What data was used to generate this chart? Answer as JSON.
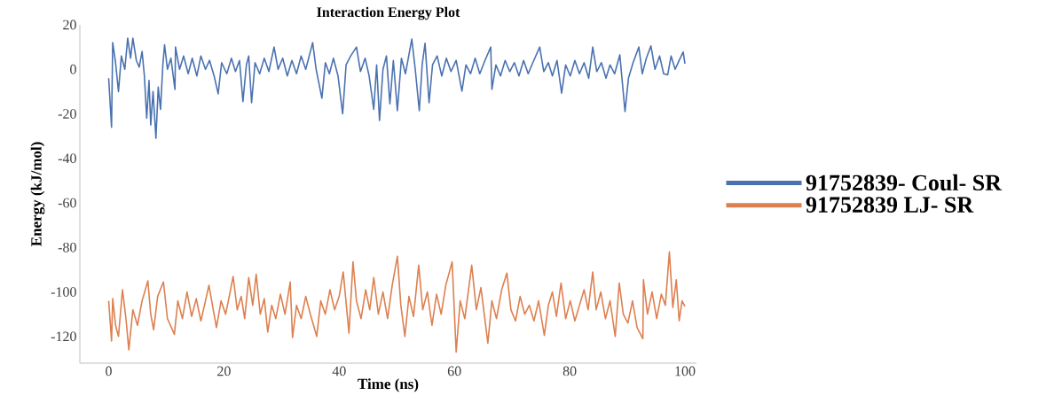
{
  "chart_data": {
    "type": "line",
    "title": "Interaction Energy Plot",
    "xlabel": "Time (ns)",
    "ylabel": "Energy (kJ/mol)",
    "xlim": [
      -5,
      102
    ],
    "ylim": [
      -132,
      20
    ],
    "xticks": [
      0,
      20,
      40,
      60,
      80,
      100
    ],
    "yticks": [
      -120,
      -100,
      -80,
      -60,
      -40,
      -20,
      0,
      20
    ],
    "grid": false,
    "legend": "right",
    "marker": "none",
    "line_style": "solid",
    "series": [
      {
        "name": "91752839- Coul- SR",
        "color": "#4a72b0",
        "x": [
          0,
          0.5,
          0.7,
          1.2,
          1.7,
          2.2,
          2.8,
          3.3,
          3.8,
          4.2,
          4.8,
          5.3,
          5.8,
          6.2,
          6.6,
          7,
          7.3,
          7.7,
          8.2,
          8.6,
          9,
          9.4,
          9.7,
          10.2,
          10.8,
          11.5,
          11.6,
          12.3,
          13,
          13.8,
          14.5,
          15.3,
          16,
          16.8,
          17.5,
          18.3,
          19,
          19.6,
          20.5,
          21.3,
          22,
          22.7,
          23.3,
          23.9,
          24.3,
          24.8,
          25.4,
          26.2,
          27,
          27.8,
          28.7,
          29.4,
          30.2,
          31,
          31.8,
          32.6,
          33.4,
          34.2,
          35.4,
          36,
          37,
          37.6,
          38.3,
          39,
          39.8,
          40.6,
          41.2,
          42,
          43,
          43.7,
          44.5,
          45.2,
          46,
          46.5,
          47,
          47.6,
          48.2,
          48.8,
          49.4,
          50.1,
          50.8,
          51.5,
          52.6,
          53.2,
          53.9,
          54.4,
          54.9,
          55.6,
          56.2,
          57,
          57.8,
          58.6,
          59.4,
          60.3,
          61.3,
          62,
          62.8,
          63.6,
          64.4,
          65.3,
          66.3,
          66.5,
          67.2,
          68,
          68.8,
          69.6,
          70.4,
          71.2,
          72,
          72.8,
          73.6,
          74.8,
          75.5,
          76.3,
          77,
          77.8,
          78.6,
          79.3,
          80.1,
          80.9,
          81.7,
          82.5,
          83.3,
          84,
          84.7,
          85.5,
          86.3,
          87,
          87.8,
          88.7,
          89.6,
          90.2,
          91,
          92,
          92.6,
          93.3,
          94.1,
          94.8,
          95.6,
          96.3,
          97,
          97.6,
          98.3,
          99,
          99.7,
          100
        ],
        "values": [
          -4,
          -26,
          12,
          3,
          -10,
          6,
          0,
          14,
          5,
          14,
          4,
          1,
          8,
          -3,
          -22,
          -5,
          -25,
          -10,
          -31,
          -8,
          -18,
          2,
          11,
          0,
          5,
          -9,
          10,
          0,
          6,
          -2,
          5,
          -3,
          6,
          0,
          4,
          -3,
          -11,
          3,
          -2,
          5,
          -1,
          4,
          -14.5,
          2,
          6,
          -15,
          3,
          -2,
          5,
          -1,
          10,
          0,
          5,
          -3,
          4,
          -2,
          6,
          0,
          12,
          0,
          -13,
          3,
          -2,
          5,
          -3,
          -20,
          2,
          6,
          10,
          -1,
          5,
          -3,
          -18,
          2,
          -23,
          0,
          6,
          -15.5,
          4,
          -18.6,
          5,
          -2,
          13.6,
          0,
          -18.6,
          2,
          11.7,
          -15,
          2,
          6,
          -3,
          5,
          -1,
          4,
          -9.8,
          2,
          -2,
          5,
          -2,
          4,
          10,
          -9,
          2,
          -3,
          4,
          -1,
          3,
          -3,
          4,
          -2,
          3,
          10,
          -1,
          3,
          -3,
          4,
          -10.7,
          2,
          -3,
          4,
          -2,
          3,
          -4,
          10,
          -1,
          3,
          -4,
          2,
          -2,
          6.5,
          -19,
          -4,
          3,
          10,
          -2,
          5,
          10.5,
          0,
          6,
          -2,
          -2.5,
          6,
          0,
          4,
          7.8,
          2.5
        ]
      },
      {
        "name": "91752839 LJ- SR",
        "color": "#dd8050",
        "x": [
          0,
          0.5,
          0.7,
          1.2,
          1.7,
          2.4,
          3,
          3.5,
          4.2,
          5,
          5.8,
          6.8,
          7.3,
          7.8,
          8.5,
          9.5,
          10.2,
          11.4,
          12,
          12.8,
          13.6,
          14.4,
          15.2,
          16,
          16.8,
          17.4,
          18.7,
          19.5,
          20.3,
          21,
          21.6,
          22.3,
          23,
          23.6,
          24.3,
          25,
          25.6,
          26.3,
          27,
          27.6,
          28.3,
          29,
          29.8,
          30.6,
          31.5,
          31.9,
          32.6,
          33.4,
          34.2,
          35,
          36.1,
          36.8,
          37.6,
          38.4,
          39.2,
          40,
          40.7,
          41.7,
          42.4,
          43,
          43.8,
          44.6,
          45.3,
          46,
          46.8,
          47.6,
          48.4,
          49.2,
          50.1,
          50.7,
          51.4,
          52.1,
          52.9,
          53.8,
          54.5,
          55.3,
          56.1,
          56.9,
          57.7,
          58.5,
          59.6,
          60.3,
          61,
          61.8,
          63,
          63.8,
          64.6,
          65.8,
          66.5,
          67.3,
          68.2,
          69.1,
          69.8,
          70.6,
          71.4,
          72.2,
          73,
          73.8,
          74.6,
          75.6,
          76.3,
          77,
          77.7,
          78.5,
          79.3,
          80.1,
          80.9,
          81.7,
          82.5,
          83.2,
          84,
          84.6,
          85.4,
          86.2,
          87,
          87.9,
          88.6,
          89.3,
          90.1,
          90.9,
          91.7,
          92.7,
          92.8,
          93.5,
          94.3,
          95.1,
          95.9,
          96.6,
          97.3,
          97.9,
          98.5,
          99,
          99.5,
          100
        ],
        "values": [
          -104,
          -122,
          -103,
          -115,
          -120,
          -99,
          -112,
          -126,
          -108,
          -115,
          -104,
          -95,
          -110,
          -117,
          -102,
          -95.5,
          -112,
          -119,
          -104,
          -112,
          -100,
          -111,
          -103,
          -113,
          -104,
          -97,
          -116,
          -104,
          -110,
          -101,
          -93,
          -108,
          -102,
          -112,
          -93.5,
          -106,
          -92,
          -110,
          -103,
          -118,
          -106,
          -112,
          -101,
          -110,
          -95.5,
          -120.5,
          -106,
          -112,
          -102,
          -110,
          -120,
          -104,
          -110,
          -99,
          -108,
          -102,
          -91,
          -118.5,
          -86.5,
          -104,
          -112,
          -99,
          -108,
          -93.5,
          -110,
          -100,
          -112,
          -97,
          -84,
          -106,
          -120,
          -102,
          -111,
          -88,
          -108,
          -100,
          -115,
          -101,
          -110,
          -97,
          -86.5,
          -127,
          -104,
          -112,
          -88,
          -108,
          -98,
          -123,
          -104,
          -112,
          -99,
          -91.5,
          -108,
          -113,
          -102,
          -110,
          -106,
          -113,
          -104,
          -119.5,
          -106,
          -100,
          -111,
          -96,
          -112,
          -104,
          -113,
          -106,
          -99,
          -108,
          -91,
          -108,
          -100,
          -112,
          -104,
          -120,
          -96,
          -110,
          -114,
          -104,
          -116,
          -121,
          -94.5,
          -110,
          -100,
          -112,
          -101,
          -106,
          -82,
          -107,
          -94.5,
          -113,
          -104,
          -106.5
        ]
      }
    ]
  }
}
